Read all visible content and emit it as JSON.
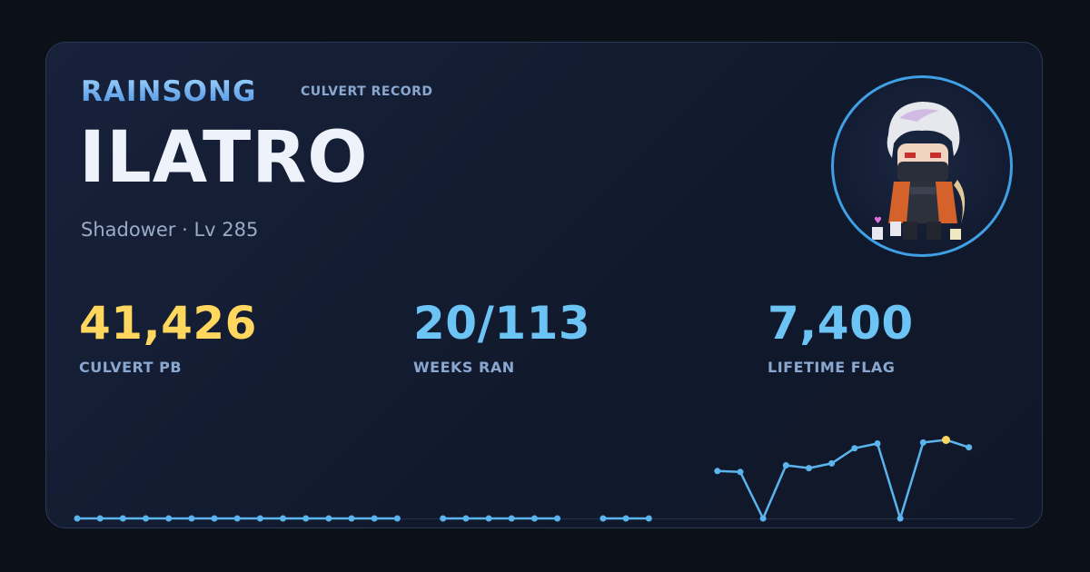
{
  "brand": {
    "title": "RAINSONG",
    "subtitle": "CULVERT RECORD"
  },
  "character": {
    "name": "ILATRO",
    "class_level": "Shadower · Lv 285",
    "avatar_icon": "shadower-character-sprite-icon"
  },
  "stats": [
    {
      "value": "41,426",
      "label": "CULVERT PB",
      "color": "#ffd75e"
    },
    {
      "value": "20/113",
      "label": "WEEKS RAN",
      "color": "#6cc4f5"
    },
    {
      "value": "7,400",
      "label": "LIFETIME FLAG",
      "color": "#6cc4f5"
    }
  ],
  "colors": {
    "accent": "#3fa0e6",
    "line": "#5bb4ee",
    "highlight": "#ffd75e"
  },
  "chart_data": {
    "type": "line",
    "x": [
      1,
      2,
      3,
      4,
      5,
      6,
      7,
      8,
      9,
      10,
      11,
      12,
      13,
      14,
      15,
      16,
      17,
      18,
      19,
      20,
      21,
      22,
      23,
      24,
      25,
      26,
      27,
      28,
      29,
      30,
      31,
      32,
      33,
      34,
      35,
      36,
      37,
      38,
      39,
      40,
      41,
      42
    ],
    "segments": [
      {
        "points": [
          [
            1,
            0
          ],
          [
            2,
            0
          ],
          [
            3,
            0
          ],
          [
            4,
            0
          ],
          [
            5,
            0
          ],
          [
            6,
            0
          ],
          [
            7,
            0
          ],
          [
            8,
            0
          ],
          [
            9,
            0
          ],
          [
            10,
            0
          ],
          [
            11,
            0
          ],
          [
            12,
            0
          ],
          [
            13,
            0
          ],
          [
            14,
            0
          ],
          [
            15,
            0
          ]
        ]
      },
      {
        "points": [
          [
            17,
            0
          ],
          [
            18,
            0
          ],
          [
            19,
            0
          ],
          [
            20,
            0
          ],
          [
            21,
            0
          ],
          [
            22,
            0
          ]
        ]
      },
      {
        "points": [
          [
            24,
            0
          ],
          [
            25,
            0
          ],
          [
            26,
            0
          ]
        ]
      },
      {
        "points": [
          [
            29,
            25000
          ],
          [
            30,
            24500
          ],
          [
            31,
            0
          ],
          [
            32,
            28000
          ],
          [
            33,
            26500
          ],
          [
            34,
            29000
          ],
          [
            35,
            37000
          ],
          [
            36,
            39500
          ],
          [
            37,
            0
          ],
          [
            38,
            40000
          ],
          [
            39,
            41426
          ],
          [
            40,
            37500
          ]
        ]
      }
    ],
    "highlight_point": [
      39,
      41426
    ],
    "ylim": [
      0,
      45000
    ],
    "grid": false,
    "title": "",
    "xlabel": "",
    "ylabel": ""
  }
}
